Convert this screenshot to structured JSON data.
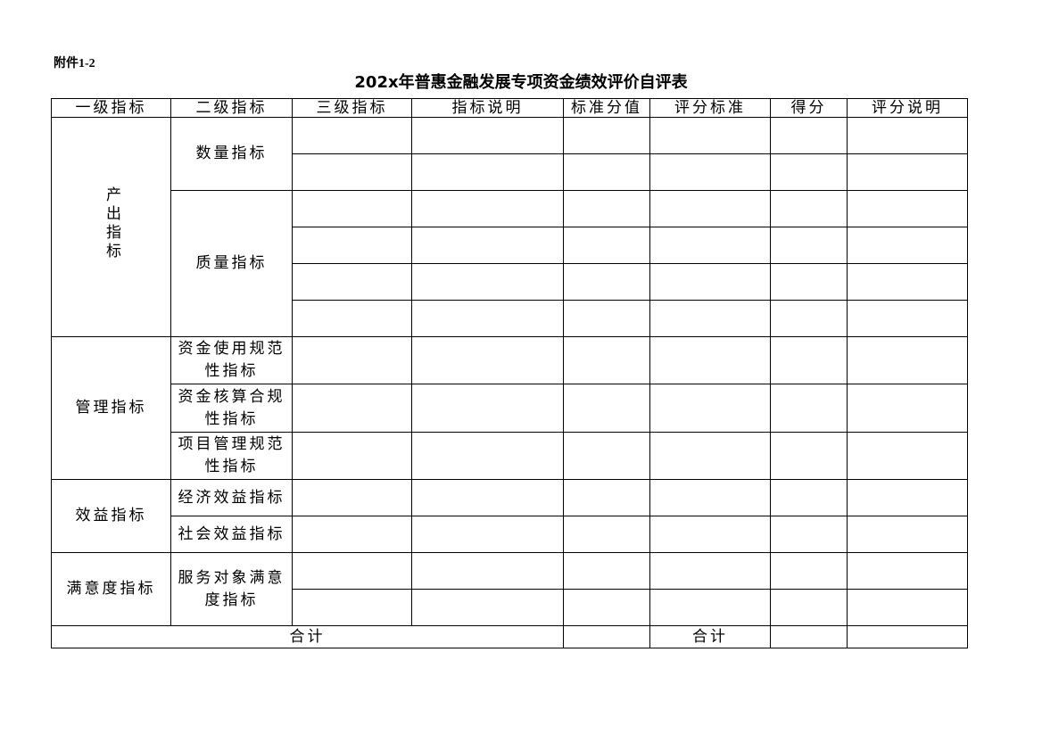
{
  "attachment_label": "附件1-2",
  "title": "202x年普惠金融发展专项资金绩效评价自评表",
  "table": {
    "headers": [
      "一级指标",
      "二级指标",
      "三级指标",
      "指标说明",
      "标准分值",
      "评分标准",
      "得分",
      "评分说明"
    ],
    "groups": [
      {
        "level1": "产出指标",
        "vertical": true,
        "subs": [
          {
            "level2": "数量指标",
            "rows": 2
          },
          {
            "level2": "质量指标",
            "rows": 4
          }
        ]
      },
      {
        "level1": "管理指标",
        "subs": [
          {
            "level2": "资金使用规范性指标",
            "rows": 1
          },
          {
            "level2": "资金核算合规性指标",
            "rows": 1
          },
          {
            "level2": "项目管理规范性指标",
            "rows": 1
          }
        ]
      },
      {
        "level1": "效益指标",
        "subs": [
          {
            "level2": "经济效益指标",
            "rows": 1
          },
          {
            "level2": "社会效益指标",
            "rows": 1
          }
        ]
      },
      {
        "level1": "满意度指标",
        "subs": [
          {
            "level2": "服务对象满意度指标",
            "rows": 2
          }
        ]
      }
    ],
    "total_label": "合计",
    "total_label_2": "合计"
  }
}
